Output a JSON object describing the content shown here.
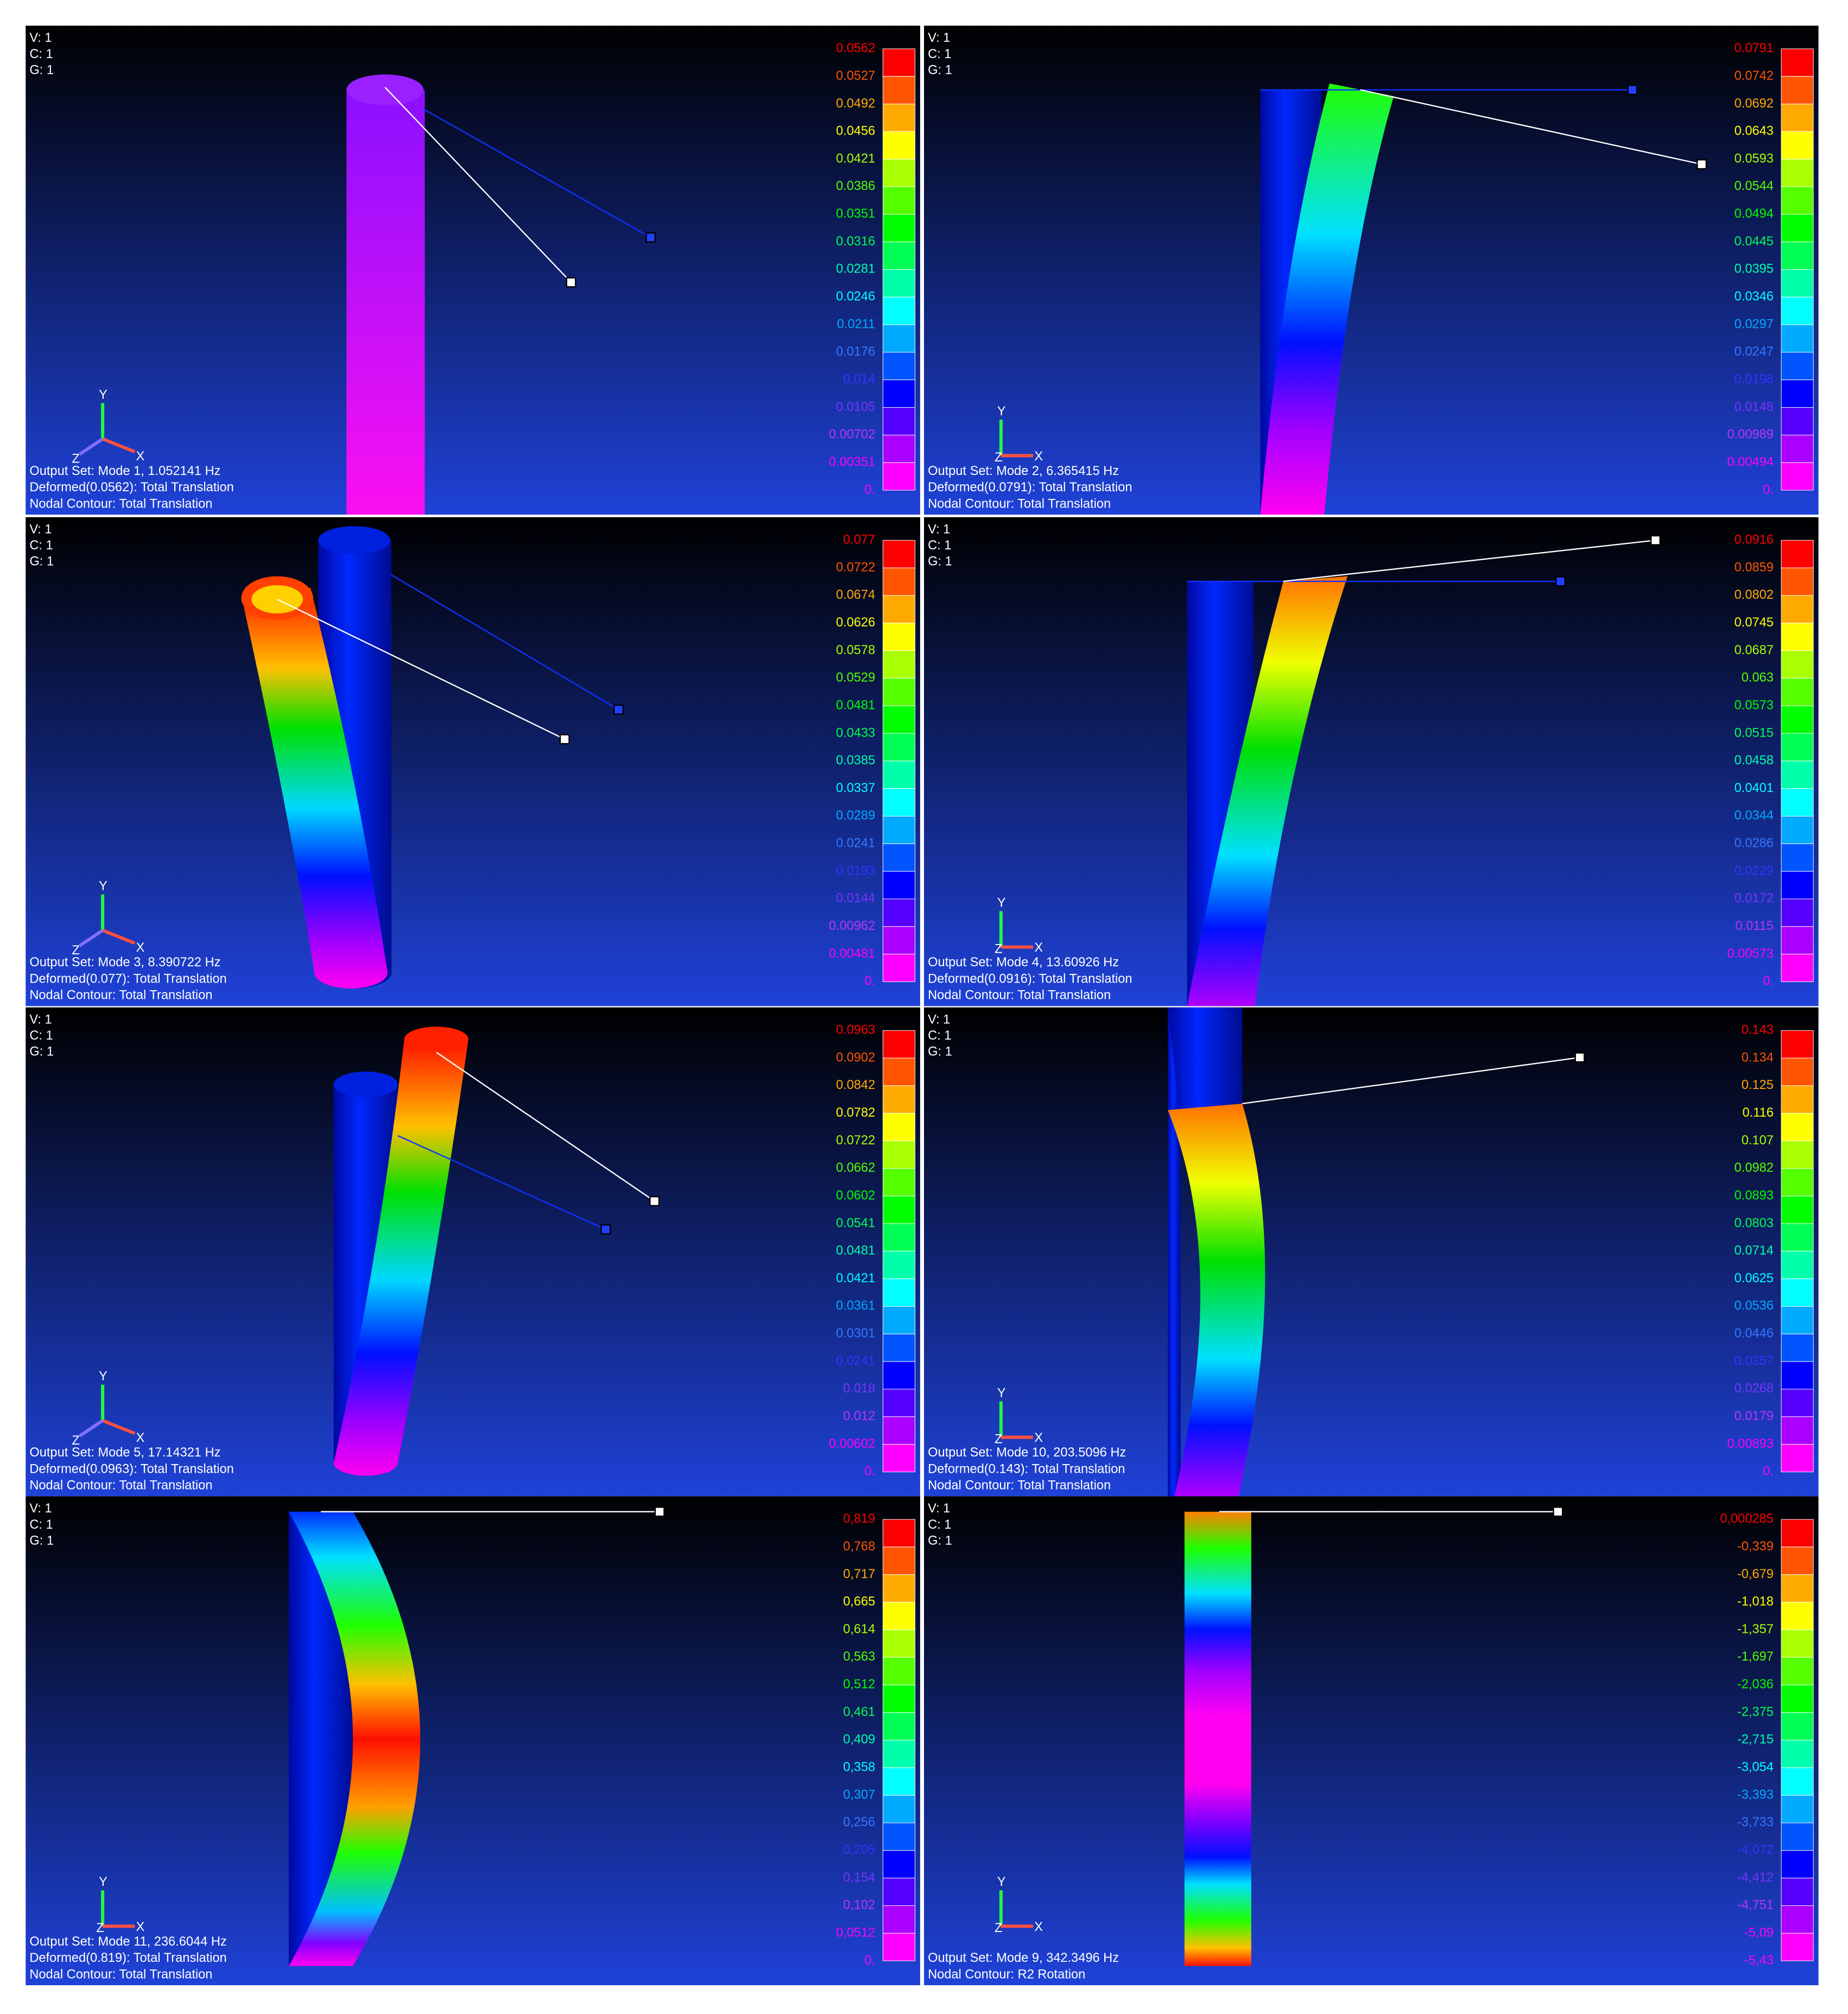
{
  "triad": {
    "x": "X",
    "y": "Y",
    "z": "Z"
  },
  "panels": [
    {
      "header": [
        "V: 1",
        "C: 1",
        "G: 1"
      ],
      "legend": [
        "0.0562",
        "0.0527",
        "0.0492",
        "0.0456",
        "0.0421",
        "0.0386",
        "0.0351",
        "0.0316",
        "0.0281",
        "0.0246",
        "0.0211",
        "0.0176",
        "0.014",
        "0.0105",
        "0.00702",
        "0.00351",
        "0."
      ],
      "caption": [
        "Output Set: Mode 1, 1.052141 Hz",
        "Deformed(0.0562): Total Translation",
        "Nodal Contour: Total Translation"
      ]
    },
    {
      "header": [
        "V: 1",
        "C: 1",
        "G: 1"
      ],
      "legend": [
        "0.0791",
        "0.0742",
        "0.0692",
        "0.0643",
        "0.0593",
        "0.0544",
        "0.0494",
        "0.0445",
        "0.0395",
        "0.0346",
        "0.0297",
        "0.0247",
        "0.0198",
        "0.0148",
        "0.00989",
        "0.00494",
        "0."
      ],
      "caption": [
        "Output Set: Mode 2, 6.365415 Hz",
        "Deformed(0.0791): Total Translation",
        "Nodal Contour: Total Translation"
      ]
    },
    {
      "header": [
        "V: 1",
        "C: 1",
        "G: 1"
      ],
      "legend": [
        "0.077",
        "0.0722",
        "0.0674",
        "0.0626",
        "0.0578",
        "0.0529",
        "0.0481",
        "0.0433",
        "0.0385",
        "0.0337",
        "0.0289",
        "0.0241",
        "0.0193",
        "0.0144",
        "0.00962",
        "0.00481",
        "0."
      ],
      "caption": [
        "Output Set: Mode 3, 8.390722 Hz",
        "Deformed(0.077): Total Translation",
        "Nodal Contour: Total Translation"
      ]
    },
    {
      "header": [
        "V: 1",
        "C: 1",
        "G: 1"
      ],
      "legend": [
        "0.0916",
        "0.0859",
        "0.0802",
        "0.0745",
        "0.0687",
        "0.063",
        "0.0573",
        "0.0515",
        "0.0458",
        "0.0401",
        "0.0344",
        "0.0286",
        "0.0229",
        "0.0172",
        "0.0115",
        "0.00573",
        "0."
      ],
      "caption": [
        "Output Set: Mode 4, 13.60926 Hz",
        "Deformed(0.0916): Total Translation",
        "Nodal Contour: Total Translation"
      ]
    },
    {
      "header": [
        "V: 1",
        "C: 1",
        "G: 1"
      ],
      "legend": [
        "0.0963",
        "0.0902",
        "0.0842",
        "0.0782",
        "0.0722",
        "0.0662",
        "0.0602",
        "0.0541",
        "0.0481",
        "0.0421",
        "0.0361",
        "0.0301",
        "0.0241",
        "0.018",
        "0.012",
        "0.00602",
        "0."
      ],
      "caption": [
        "Output Set: Mode 5, 17.14321 Hz",
        "Deformed(0.0963): Total Translation",
        "Nodal Contour: Total Translation"
      ]
    },
    {
      "header": [
        "V: 1",
        "C: 1",
        "G: 1"
      ],
      "legend": [
        "0.143",
        "0.134",
        "0.125",
        "0.116",
        "0.107",
        "0.0982",
        "0.0893",
        "0.0803",
        "0.0714",
        "0.0625",
        "0.0536",
        "0.0446",
        "0.0357",
        "0.0268",
        "0.0179",
        "0.00893",
        "0."
      ],
      "caption": [
        "Output Set: Mode 10, 203.5096 Hz",
        "Deformed(0.143): Total Translation",
        "Nodal Contour: Total Translation"
      ]
    },
    {
      "header": [
        "V: 1",
        "C: 1",
        "G: 1"
      ],
      "legend": [
        "0,819",
        "0,768",
        "0,717",
        "0,665",
        "0,614",
        "0,563",
        "0,512",
        "0,461",
        "0,409",
        "0,358",
        "0,307",
        "0,256",
        "0,205",
        "0,154",
        "0,102",
        "0,0512",
        "0,"
      ],
      "caption": [
        "Output Set: Mode 11, 236.6044 Hz",
        "Deformed(0.819): Total Translation",
        "Nodal Contour: Total Translation"
      ]
    },
    {
      "header": [
        "V: 1",
        "C: 1",
        "G: 1"
      ],
      "legend": [
        "0,000285",
        "-0,339",
        "-0,679",
        "-1,018",
        "-1,357",
        "-1,697",
        "-2,036",
        "-2,375",
        "-2,715",
        "-3,054",
        "-3,393",
        "-3,733",
        "-4,072",
        "-4,412",
        "-4,751",
        "-5,09",
        "-5,43"
      ],
      "caption": [
        "Output Set: Mode 9, 342.3496 Hz",
        "Nodal Contour: R2 Rotation"
      ]
    }
  ]
}
